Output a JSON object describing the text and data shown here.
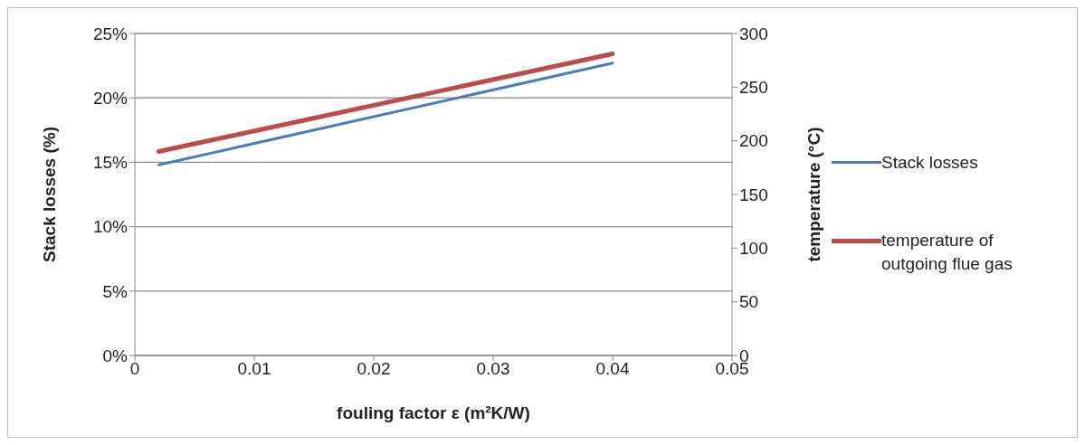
{
  "chart_data": {
    "type": "line",
    "xlabel": "fouling factor ε (m²K/W)",
    "ylabel": "Stack losses (%)",
    "y2label": "temperature (°C)",
    "x": [
      0.002,
      0.04
    ],
    "xlim": [
      0,
      0.05
    ],
    "xticks": [
      0,
      0.01,
      0.02,
      0.03,
      0.04,
      0.05
    ],
    "ylim": [
      0,
      25
    ],
    "yticks": [
      {
        "value": 0,
        "label": "0%"
      },
      {
        "value": 5,
        "label": "5%"
      },
      {
        "value": 10,
        "label": "10%"
      },
      {
        "value": 15,
        "label": "15%"
      },
      {
        "value": 20,
        "label": "20%"
      },
      {
        "value": 25,
        "label": "25%"
      }
    ],
    "y2lim": [
      0,
      300
    ],
    "y2ticks": [
      0,
      50,
      100,
      150,
      200,
      250,
      300
    ],
    "grid": "y",
    "legend": "right",
    "marker": "none",
    "line_style": "solid",
    "series": [
      {
        "name": "Stack losses",
        "color": "#4a7ebb",
        "values": [
          14.8,
          22.7
        ]
      },
      {
        "name": "temperature of outgoing flue gas",
        "color": "#be4b48",
        "axis": "y2",
        "values": [
          190,
          281
        ]
      }
    ]
  }
}
